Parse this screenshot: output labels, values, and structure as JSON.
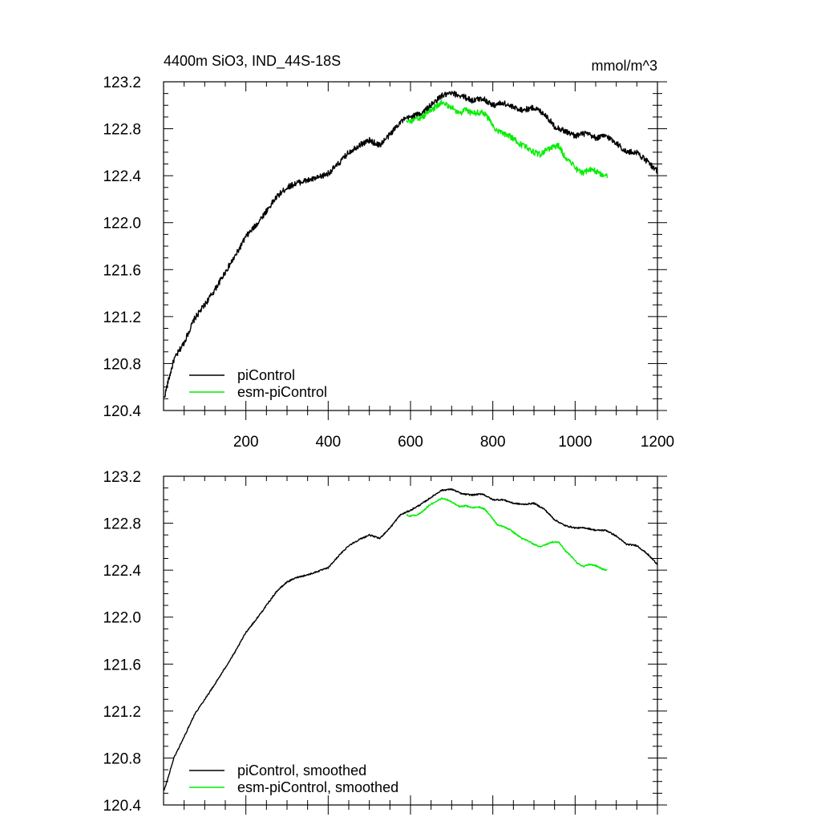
{
  "chart_data": [
    {
      "type": "line",
      "title": "4400m SiO3, IND_44S-18S",
      "units": "mmol/m^3",
      "xlabel": "",
      "ylabel": "",
      "xlim": [
        0,
        1200
      ],
      "ylim": [
        120.4,
        123.2
      ],
      "xticks": [
        200,
        400,
        600,
        800,
        1000,
        1200
      ],
      "yticks": [
        120.4,
        120.8,
        121.2,
        121.6,
        122.0,
        122.4,
        122.8,
        123.2
      ],
      "ytick_labels": [
        "120.4",
        "120.8",
        "121.2",
        "121.6",
        "122.0",
        "122.4",
        "122.8",
        "123.2"
      ],
      "noise": 0.025,
      "legend_position": "bottom-left",
      "series": [
        {
          "name": "piControl",
          "color": "#000000",
          "x": [
            1,
            10,
            25,
            50,
            75,
            100,
            125,
            150,
            175,
            200,
            225,
            250,
            275,
            300,
            325,
            350,
            375,
            400,
            425,
            450,
            475,
            500,
            525,
            550,
            575,
            600,
            625,
            650,
            675,
            700,
            725,
            750,
            775,
            800,
            825,
            850,
            875,
            900,
            925,
            950,
            975,
            1000,
            1025,
            1050,
            1075,
            1100,
            1125,
            1150,
            1175,
            1200
          ],
          "values": [
            120.5,
            120.63,
            120.83,
            120.98,
            121.18,
            121.3,
            121.43,
            121.58,
            121.72,
            121.88,
            121.98,
            122.1,
            122.22,
            122.3,
            122.34,
            122.36,
            122.38,
            122.42,
            122.5,
            122.6,
            122.66,
            122.7,
            122.66,
            122.75,
            122.86,
            122.9,
            122.93,
            123.0,
            123.08,
            123.1,
            123.08,
            123.04,
            123.06,
            123.0,
            123.02,
            122.98,
            122.96,
            122.98,
            122.93,
            122.82,
            122.78,
            122.74,
            122.76,
            122.72,
            122.74,
            122.68,
            122.6,
            122.6,
            122.52,
            122.44
          ]
        },
        {
          "name": "esm-piControl",
          "color": "#00ee00",
          "x": [
            590,
            600,
            615,
            630,
            645,
            660,
            675,
            690,
            705,
            720,
            735,
            750,
            765,
            780,
            795,
            810,
            825,
            840,
            855,
            870,
            885,
            900,
            915,
            930,
            945,
            960,
            975,
            990,
            1005,
            1020,
            1035,
            1050,
            1065,
            1078
          ],
          "values": [
            122.88,
            122.86,
            122.88,
            122.9,
            122.95,
            122.98,
            123.02,
            123.0,
            122.97,
            122.93,
            122.96,
            122.93,
            122.94,
            122.93,
            122.86,
            122.78,
            122.76,
            122.74,
            122.7,
            122.66,
            122.64,
            122.6,
            122.58,
            122.62,
            122.64,
            122.66,
            122.56,
            122.52,
            122.45,
            122.42,
            122.46,
            122.44,
            122.41,
            122.4
          ]
        }
      ]
    },
    {
      "type": "line",
      "title": "",
      "units": "",
      "xlabel": "",
      "ylabel": "",
      "xlim": [
        0,
        1200
      ],
      "ylim": [
        120.4,
        123.2
      ],
      "xticks": [
        200,
        400,
        600,
        800,
        1000,
        1200
      ],
      "yticks": [
        120.4,
        120.8,
        121.2,
        121.6,
        122.0,
        122.4,
        122.8,
        123.2
      ],
      "ytick_labels": [
        "120.4",
        "120.8",
        "121.2",
        "121.6",
        "122.0",
        "122.4",
        "122.8",
        "123.2"
      ],
      "noise": 0.006,
      "legend_position": "bottom-left",
      "series": [
        {
          "name": "piControl, smoothed",
          "color": "#000000",
          "x": [
            1,
            10,
            25,
            50,
            75,
            100,
            125,
            150,
            175,
            200,
            225,
            250,
            275,
            300,
            325,
            350,
            375,
            400,
            425,
            450,
            475,
            500,
            525,
            550,
            575,
            600,
            625,
            650,
            675,
            700,
            725,
            750,
            775,
            800,
            825,
            850,
            875,
            900,
            925,
            950,
            975,
            1000,
            1025,
            1050,
            1075,
            1100,
            1125,
            1150,
            1175,
            1200
          ],
          "values": [
            120.52,
            120.62,
            120.8,
            120.98,
            121.17,
            121.3,
            121.43,
            121.57,
            121.71,
            121.87,
            121.98,
            122.1,
            122.22,
            122.3,
            122.34,
            122.36,
            122.39,
            122.42,
            122.52,
            122.61,
            122.66,
            122.7,
            122.67,
            122.76,
            122.87,
            122.91,
            122.96,
            123.02,
            123.08,
            123.09,
            123.05,
            123.04,
            123.05,
            123.0,
            123.0,
            122.97,
            122.96,
            122.97,
            122.92,
            122.83,
            122.78,
            122.76,
            122.76,
            122.74,
            122.74,
            122.69,
            122.62,
            122.61,
            122.54,
            122.45
          ]
        },
        {
          "name": "esm-piControl, smoothed",
          "color": "#00ee00",
          "x": [
            590,
            600,
            615,
            630,
            645,
            660,
            675,
            690,
            705,
            720,
            735,
            750,
            765,
            780,
            795,
            810,
            825,
            840,
            855,
            870,
            885,
            900,
            915,
            930,
            945,
            960,
            975,
            990,
            1005,
            1020,
            1035,
            1050,
            1065,
            1078
          ],
          "values": [
            122.87,
            122.86,
            122.87,
            122.9,
            122.95,
            122.98,
            123.01,
            123.0,
            122.97,
            122.94,
            122.95,
            122.93,
            122.94,
            122.92,
            122.86,
            122.79,
            122.77,
            122.75,
            122.71,
            122.67,
            122.65,
            122.62,
            122.6,
            122.62,
            122.64,
            122.64,
            122.57,
            122.52,
            122.46,
            122.43,
            122.45,
            122.44,
            122.41,
            122.4
          ]
        }
      ]
    }
  ]
}
